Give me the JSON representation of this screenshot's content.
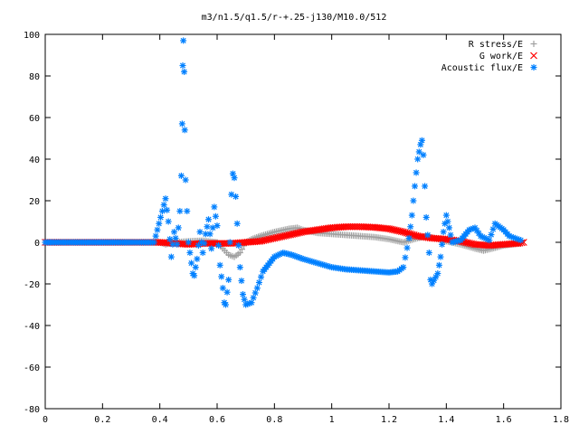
{
  "chart_data": {
    "type": "scatter",
    "title": "m3/n1.5/q1.5/r-+.25-j130/M10.0/512",
    "xlabel": "",
    "ylabel": "",
    "xlim": [
      0,
      1.8
    ],
    "ylim": [
      -80,
      100
    ],
    "xticks": [
      "0",
      "0.2",
      "0.4",
      "0.6",
      "0.8",
      "1",
      "1.2",
      "1.4",
      "1.6",
      "1.8"
    ],
    "yticks": [
      "100",
      "80",
      "60",
      "40",
      "20",
      "0",
      "-20",
      "-40",
      "-60",
      "-80"
    ],
    "legend_position": "top-right",
    "grid": false,
    "series": [
      {
        "name": "R stress/E",
        "marker": "+",
        "color": "#a0a0a0",
        "points": [
          [
            0.0,
            0
          ],
          [
            0.2,
            0
          ],
          [
            0.4,
            0
          ],
          [
            0.42,
            -1
          ],
          [
            0.45,
            0
          ],
          [
            0.5,
            0.5
          ],
          [
            0.55,
            0.8
          ],
          [
            0.6,
            0
          ],
          [
            0.62,
            -3
          ],
          [
            0.64,
            -6
          ],
          [
            0.66,
            -7
          ],
          [
            0.68,
            -5
          ],
          [
            0.7,
            0
          ],
          [
            0.72,
            1.5
          ],
          [
            0.75,
            3
          ],
          [
            0.8,
            5
          ],
          [
            0.85,
            6.5
          ],
          [
            0.88,
            7
          ],
          [
            0.9,
            6
          ],
          [
            0.95,
            4.5
          ],
          [
            1.0,
            4
          ],
          [
            1.05,
            3.5
          ],
          [
            1.1,
            3
          ],
          [
            1.15,
            2.5
          ],
          [
            1.2,
            1.5
          ],
          [
            1.25,
            0
          ],
          [
            1.3,
            2
          ],
          [
            1.33,
            3
          ],
          [
            1.36,
            2
          ],
          [
            1.4,
            0.5
          ],
          [
            1.45,
            -1
          ],
          [
            1.5,
            -3
          ],
          [
            1.53,
            -4
          ],
          [
            1.56,
            -3
          ],
          [
            1.6,
            -1.5
          ],
          [
            1.63,
            -1
          ],
          [
            1.66,
            -0.5
          ]
        ]
      },
      {
        "name": "G work/E",
        "marker": "x",
        "color": "#ff0000",
        "points": [
          [
            0.0,
            0
          ],
          [
            0.2,
            0
          ],
          [
            0.4,
            0
          ],
          [
            0.45,
            -0.5
          ],
          [
            0.5,
            -1
          ],
          [
            0.55,
            -0.5
          ],
          [
            0.6,
            -0.5
          ],
          [
            0.65,
            -0.5
          ],
          [
            0.7,
            0
          ],
          [
            0.75,
            0.5
          ],
          [
            0.8,
            2
          ],
          [
            0.85,
            3.5
          ],
          [
            0.9,
            5
          ],
          [
            0.95,
            6
          ],
          [
            1.0,
            7
          ],
          [
            1.05,
            7.5
          ],
          [
            1.1,
            7.5
          ],
          [
            1.15,
            7.2
          ],
          [
            1.2,
            6.5
          ],
          [
            1.25,
            5
          ],
          [
            1.3,
            3
          ],
          [
            1.35,
            2
          ],
          [
            1.4,
            1.5
          ],
          [
            1.45,
            0.5
          ],
          [
            1.5,
            -1
          ],
          [
            1.55,
            -1.5
          ],
          [
            1.6,
            -1
          ],
          [
            1.65,
            -0.5
          ],
          [
            1.67,
            0
          ]
        ]
      },
      {
        "name": "Acoustic flux/E",
        "marker": "*",
        "color": "#0080ff",
        "points": [
          [
            0.0,
            0
          ],
          [
            0.1,
            0
          ],
          [
            0.2,
            0
          ],
          [
            0.3,
            0
          ],
          [
            0.38,
            0
          ],
          [
            0.42,
            21
          ],
          [
            0.43,
            10
          ],
          [
            0.44,
            -7
          ],
          [
            0.45,
            5
          ],
          [
            0.46,
            -1
          ],
          [
            0.47,
            15
          ],
          [
            0.475,
            32
          ],
          [
            0.478,
            57
          ],
          [
            0.48,
            85
          ],
          [
            0.482,
            97
          ],
          [
            0.485,
            82
          ],
          [
            0.487,
            54
          ],
          [
            0.49,
            30
          ],
          [
            0.5,
            0
          ],
          [
            0.51,
            -10
          ],
          [
            0.515,
            -15
          ],
          [
            0.52,
            -16
          ],
          [
            0.53,
            -8
          ],
          [
            0.54,
            5
          ],
          [
            0.55,
            -5
          ],
          [
            0.56,
            4
          ],
          [
            0.57,
            11
          ],
          [
            0.58,
            -3
          ],
          [
            0.59,
            17
          ],
          [
            0.6,
            8
          ],
          [
            0.61,
            -11
          ],
          [
            0.62,
            -22
          ],
          [
            0.625,
            -29
          ],
          [
            0.63,
            -30
          ],
          [
            0.64,
            -18
          ],
          [
            0.645,
            0
          ],
          [
            0.65,
            23
          ],
          [
            0.655,
            33
          ],
          [
            0.66,
            31
          ],
          [
            0.665,
            22
          ],
          [
            0.67,
            9
          ],
          [
            0.68,
            -12
          ],
          [
            0.69,
            -25
          ],
          [
            0.7,
            -30
          ],
          [
            0.72,
            -29
          ],
          [
            0.74,
            -22
          ],
          [
            0.76,
            -14
          ],
          [
            0.8,
            -7
          ],
          [
            0.83,
            -5
          ],
          [
            0.86,
            -6
          ],
          [
            0.9,
            -8
          ],
          [
            0.95,
            -10
          ],
          [
            1.0,
            -12
          ],
          [
            1.05,
            -13
          ],
          [
            1.1,
            -13.5
          ],
          [
            1.15,
            -14
          ],
          [
            1.2,
            -14.5
          ],
          [
            1.23,
            -14
          ],
          [
            1.25,
            -12
          ],
          [
            1.27,
            2
          ],
          [
            1.28,
            13
          ],
          [
            1.29,
            27
          ],
          [
            1.3,
            40
          ],
          [
            1.31,
            47
          ],
          [
            1.315,
            49
          ],
          [
            1.32,
            42
          ],
          [
            1.33,
            12
          ],
          [
            1.34,
            -5
          ],
          [
            1.345,
            -18
          ],
          [
            1.35,
            -20
          ],
          [
            1.37,
            -15
          ],
          [
            1.38,
            -7
          ],
          [
            1.39,
            5
          ],
          [
            1.4,
            13
          ],
          [
            1.41,
            7
          ],
          [
            1.42,
            0
          ],
          [
            1.45,
            1
          ],
          [
            1.48,
            6
          ],
          [
            1.5,
            7
          ],
          [
            1.52,
            3
          ],
          [
            1.55,
            1
          ],
          [
            1.57,
            9
          ],
          [
            1.6,
            6
          ],
          [
            1.62,
            3
          ],
          [
            1.64,
            2
          ],
          [
            1.66,
            1
          ]
        ]
      }
    ]
  }
}
